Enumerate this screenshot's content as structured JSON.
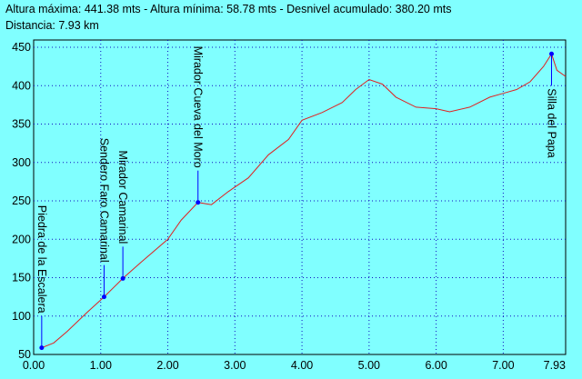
{
  "chart_data": {
    "type": "line",
    "header": [
      "Altura máxima: 441.38 mts - Altura mínima: 58.78 mts - Desnivel acumulado: 380.20 mts",
      "Distancia: 7.93 km"
    ],
    "x": [
      0.12,
      0.3,
      0.5,
      0.8,
      1.05,
      1.33,
      1.6,
      2.0,
      2.2,
      2.45,
      2.65,
      2.9,
      3.2,
      3.5,
      3.8,
      4.0,
      4.3,
      4.6,
      4.8,
      5.0,
      5.2,
      5.4,
      5.7,
      6.0,
      6.2,
      6.5,
      6.8,
      7.0,
      7.2,
      7.4,
      7.6,
      7.72,
      7.8,
      7.93
    ],
    "series": [
      {
        "color": "#e02020",
        "values": [
          58.78,
          65,
          80,
          105,
          125,
          149,
          170,
          200,
          225,
          248,
          245,
          262,
          280,
          310,
          330,
          355,
          365,
          378,
          395,
          408,
          402,
          385,
          372,
          370,
          366,
          372,
          385,
          390,
          395,
          405,
          425,
          441.38,
          420,
          412
        ]
      }
    ],
    "waypoints": [
      {
        "label": "Piedra de la Escalera",
        "x": 0.12,
        "y": 58.78
      },
      {
        "label": "Sendero Faro Camarinal",
        "x": 1.05,
        "y": 125
      },
      {
        "label": "Mirador Camarinal",
        "x": 1.33,
        "y": 149
      },
      {
        "label": "Mirador Cueva del Moro",
        "x": 2.45,
        "y": 248
      },
      {
        "label": "Silla del Papa",
        "x": 7.72,
        "y": 441.38
      }
    ],
    "waypoint_color": "#0000ff",
    "xlim": [
      0,
      7.93
    ],
    "xticks": [
      {
        "value": 0,
        "label": "0.00"
      },
      {
        "value": 1,
        "label": "1.00"
      },
      {
        "value": 2,
        "label": "2.00"
      },
      {
        "value": 3,
        "label": "3.00"
      },
      {
        "value": 4,
        "label": "4.00"
      },
      {
        "value": 5,
        "label": "5.00"
      },
      {
        "value": 6,
        "label": "6.00"
      },
      {
        "value": 7,
        "label": "7.00"
      },
      {
        "value": 7.93,
        "label": "7.93"
      }
    ],
    "ylim": [
      50,
      450
    ],
    "yticks": [
      50,
      100,
      150,
      200,
      250,
      300,
      350,
      400,
      450
    ],
    "grid": true
  }
}
